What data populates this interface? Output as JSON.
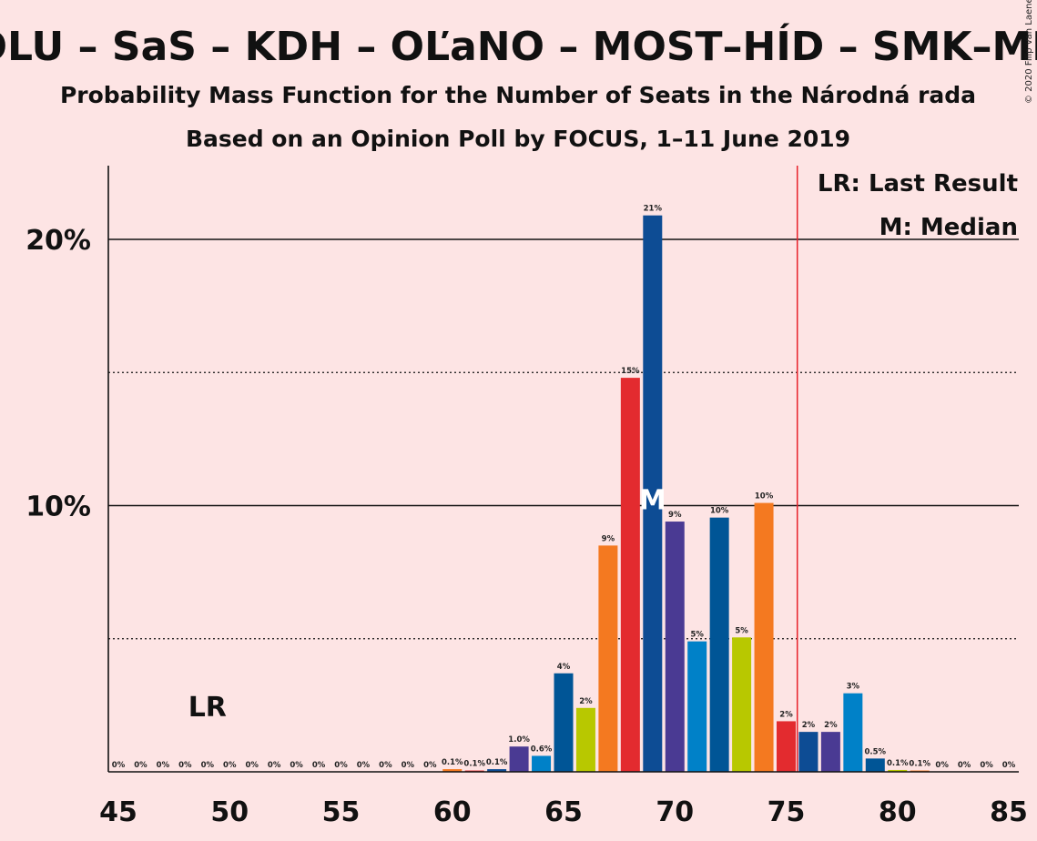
{
  "chart_data": {
    "type": "bar",
    "title": "POLU – SaS – KDH – OĽaNO – MOST–HÍD – SMK–MKP",
    "subtitle": "Probability Mass Function for the Number of Seats in the Národná rada",
    "subtitle2": "Based on an Opinion Poll by FOCUS, 1–11 June 2019",
    "copyright": "© 2020 Filip van Laenen",
    "legend": {
      "lr": "LR: Last Result",
      "m": "M: Median",
      "placement": "top-right"
    },
    "lr_marker": {
      "seat": 49,
      "text": "LR"
    },
    "median_marker": {
      "seat": 69,
      "text": "M"
    },
    "majority_line_seat": 75.5,
    "xlim": [
      45,
      85
    ],
    "ylim": [
      0,
      22.7
    ],
    "x_ticks": [
      45,
      50,
      55,
      60,
      65,
      70,
      75,
      80,
      85
    ],
    "y_ticks": [
      {
        "value": 10,
        "label": "10%"
      },
      {
        "value": 20,
        "label": "20%"
      }
    ],
    "y_dotted": [
      5,
      15
    ],
    "colors": {
      "background": "#fde4e4",
      "majority": "#e8222a",
      "palette": [
        "#f47920",
        "#e32b2f",
        "#0d4c94",
        "#4a3a93",
        "#0081c8",
        "#005596",
        "#b8c800"
      ]
    },
    "bars": [
      {
        "seat": 45,
        "value": 0,
        "label": "0%",
        "color": "#f47920"
      },
      {
        "seat": 46,
        "value": 0,
        "label": "0%",
        "color": "#e32b2f"
      },
      {
        "seat": 47,
        "value": 0,
        "label": "0%",
        "color": "#0d4c94"
      },
      {
        "seat": 48,
        "value": 0,
        "label": "0%",
        "color": "#4a3a93"
      },
      {
        "seat": 49,
        "value": 0,
        "label": "0%",
        "color": "#0081c8"
      },
      {
        "seat": 50,
        "value": 0,
        "label": "0%",
        "color": "#005596"
      },
      {
        "seat": 51,
        "value": 0,
        "label": "0%",
        "color": "#b8c800"
      },
      {
        "seat": 52,
        "value": 0,
        "label": "0%",
        "color": "#f47920"
      },
      {
        "seat": 53,
        "value": 0,
        "label": "0%",
        "color": "#e32b2f"
      },
      {
        "seat": 54,
        "value": 0,
        "label": "0%",
        "color": "#0d4c94"
      },
      {
        "seat": 55,
        "value": 0,
        "label": "0%",
        "color": "#4a3a93"
      },
      {
        "seat": 56,
        "value": 0,
        "label": "0%",
        "color": "#0081c8"
      },
      {
        "seat": 57,
        "value": 0,
        "label": "0%",
        "color": "#005596"
      },
      {
        "seat": 58,
        "value": 0,
        "label": "0%",
        "color": "#b8c800"
      },
      {
        "seat": 59,
        "value": 0,
        "label": "0%",
        "color": "#f47920"
      },
      {
        "seat": 60,
        "value": 0.1,
        "label": "0.1%",
        "color": "#f47920"
      },
      {
        "seat": 61,
        "value": 0.05,
        "label": "0.1%",
        "color": "#e32b2f"
      },
      {
        "seat": 62,
        "value": 0.1,
        "label": "0.1%",
        "color": "#0d4c94"
      },
      {
        "seat": 63,
        "value": 0.95,
        "label": "1.0%",
        "color": "#4a3a93"
      },
      {
        "seat": 64,
        "value": 0.6,
        "label": "0.6%",
        "color": "#0081c8"
      },
      {
        "seat": 65,
        "value": 3.7,
        "label": "4%",
        "color": "#005596"
      },
      {
        "seat": 66,
        "value": 2.4,
        "label": "2%",
        "color": "#b8c800"
      },
      {
        "seat": 67,
        "value": 8.5,
        "label": "9%",
        "color": "#f47920"
      },
      {
        "seat": 68,
        "value": 14.8,
        "label": "15%",
        "color": "#e32b2f"
      },
      {
        "seat": 69,
        "value": 20.9,
        "label": "21%",
        "color": "#0d4c94"
      },
      {
        "seat": 70,
        "value": 9.4,
        "label": "9%",
        "color": "#4a3a93"
      },
      {
        "seat": 71,
        "value": 4.9,
        "label": "5%",
        "color": "#0081c8"
      },
      {
        "seat": 72,
        "value": 9.55,
        "label": "10%",
        "color": "#005596"
      },
      {
        "seat": 73,
        "value": 5.05,
        "label": "5%",
        "color": "#b8c800"
      },
      {
        "seat": 74,
        "value": 10.1,
        "label": "10%",
        "color": "#f47920"
      },
      {
        "seat": 75,
        "value": 1.9,
        "label": "2%",
        "color": "#e32b2f"
      },
      {
        "seat": 76,
        "value": 1.5,
        "label": "2%",
        "color": "#0d4c94"
      },
      {
        "seat": 77,
        "value": 1.5,
        "label": "2%",
        "color": "#4a3a93"
      },
      {
        "seat": 78,
        "value": 2.95,
        "label": "3%",
        "color": "#0081c8"
      },
      {
        "seat": 79,
        "value": 0.5,
        "label": "0.5%",
        "color": "#005596"
      },
      {
        "seat": 80,
        "value": 0.07,
        "label": "0.1%",
        "color": "#b8c800"
      },
      {
        "seat": 81,
        "value": 0.05,
        "label": "0.1%",
        "color": "#f47920"
      },
      {
        "seat": 82,
        "value": 0,
        "label": "0%",
        "color": "#e32b2f"
      },
      {
        "seat": 83,
        "value": 0,
        "label": "0%",
        "color": "#0d4c94"
      },
      {
        "seat": 84,
        "value": 0,
        "label": "0%",
        "color": "#4a3a93"
      },
      {
        "seat": 85,
        "value": 0,
        "label": "0%",
        "color": "#0081c8"
      }
    ]
  }
}
